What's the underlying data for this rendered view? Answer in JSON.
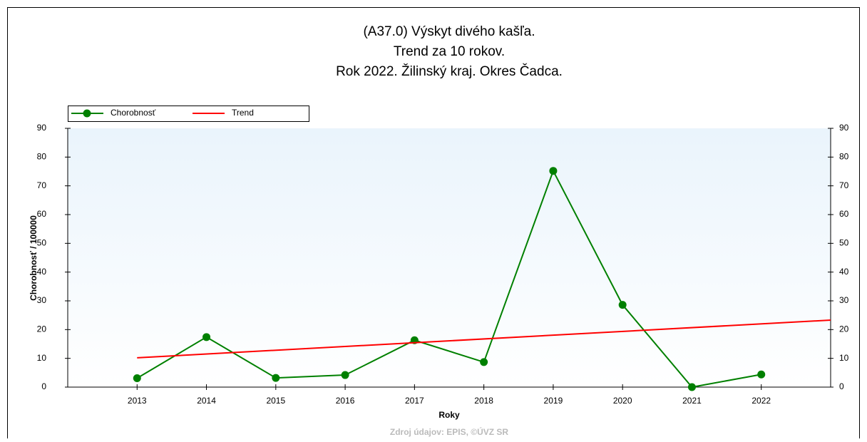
{
  "chart_data": {
    "type": "line",
    "title": [
      "(A37.0) Výskyt divého kašľa.",
      "Trend za 10 rokov.",
      "Rok 2022. Žilinský kraj. Okres Čadca."
    ],
    "x_label": "Roky",
    "y_label": "Chorobnosť / 100000",
    "footer": "Zdroj údajov: EPIS, ©ÚVZ SR",
    "x": [
      2013,
      2014,
      2015,
      2016,
      2017,
      2018,
      2019,
      2020,
      2021,
      2022
    ],
    "xlim": [
      2012,
      2023
    ],
    "series": [
      {
        "name": "Chorobnosť",
        "color": "#008000",
        "markers": true,
        "values": [
          3.1,
          17.4,
          3.2,
          4.2,
          16.3,
          8.7,
          75.2,
          28.6,
          0,
          4.4
        ]
      },
      {
        "name": "Trend",
        "color": "#ff0000",
        "markers": false,
        "x": [
          2013,
          2023
        ],
        "values": [
          10.2,
          23.3
        ]
      }
    ],
    "ylim": [
      0,
      90
    ],
    "yticks": [
      0,
      10,
      20,
      30,
      40,
      50,
      60,
      70,
      80,
      90
    ],
    "y2lim": [
      0,
      90
    ],
    "y2ticks": [
      0,
      10,
      20,
      30,
      40,
      50,
      60,
      70,
      80,
      90
    ],
    "legend": "top-left"
  }
}
